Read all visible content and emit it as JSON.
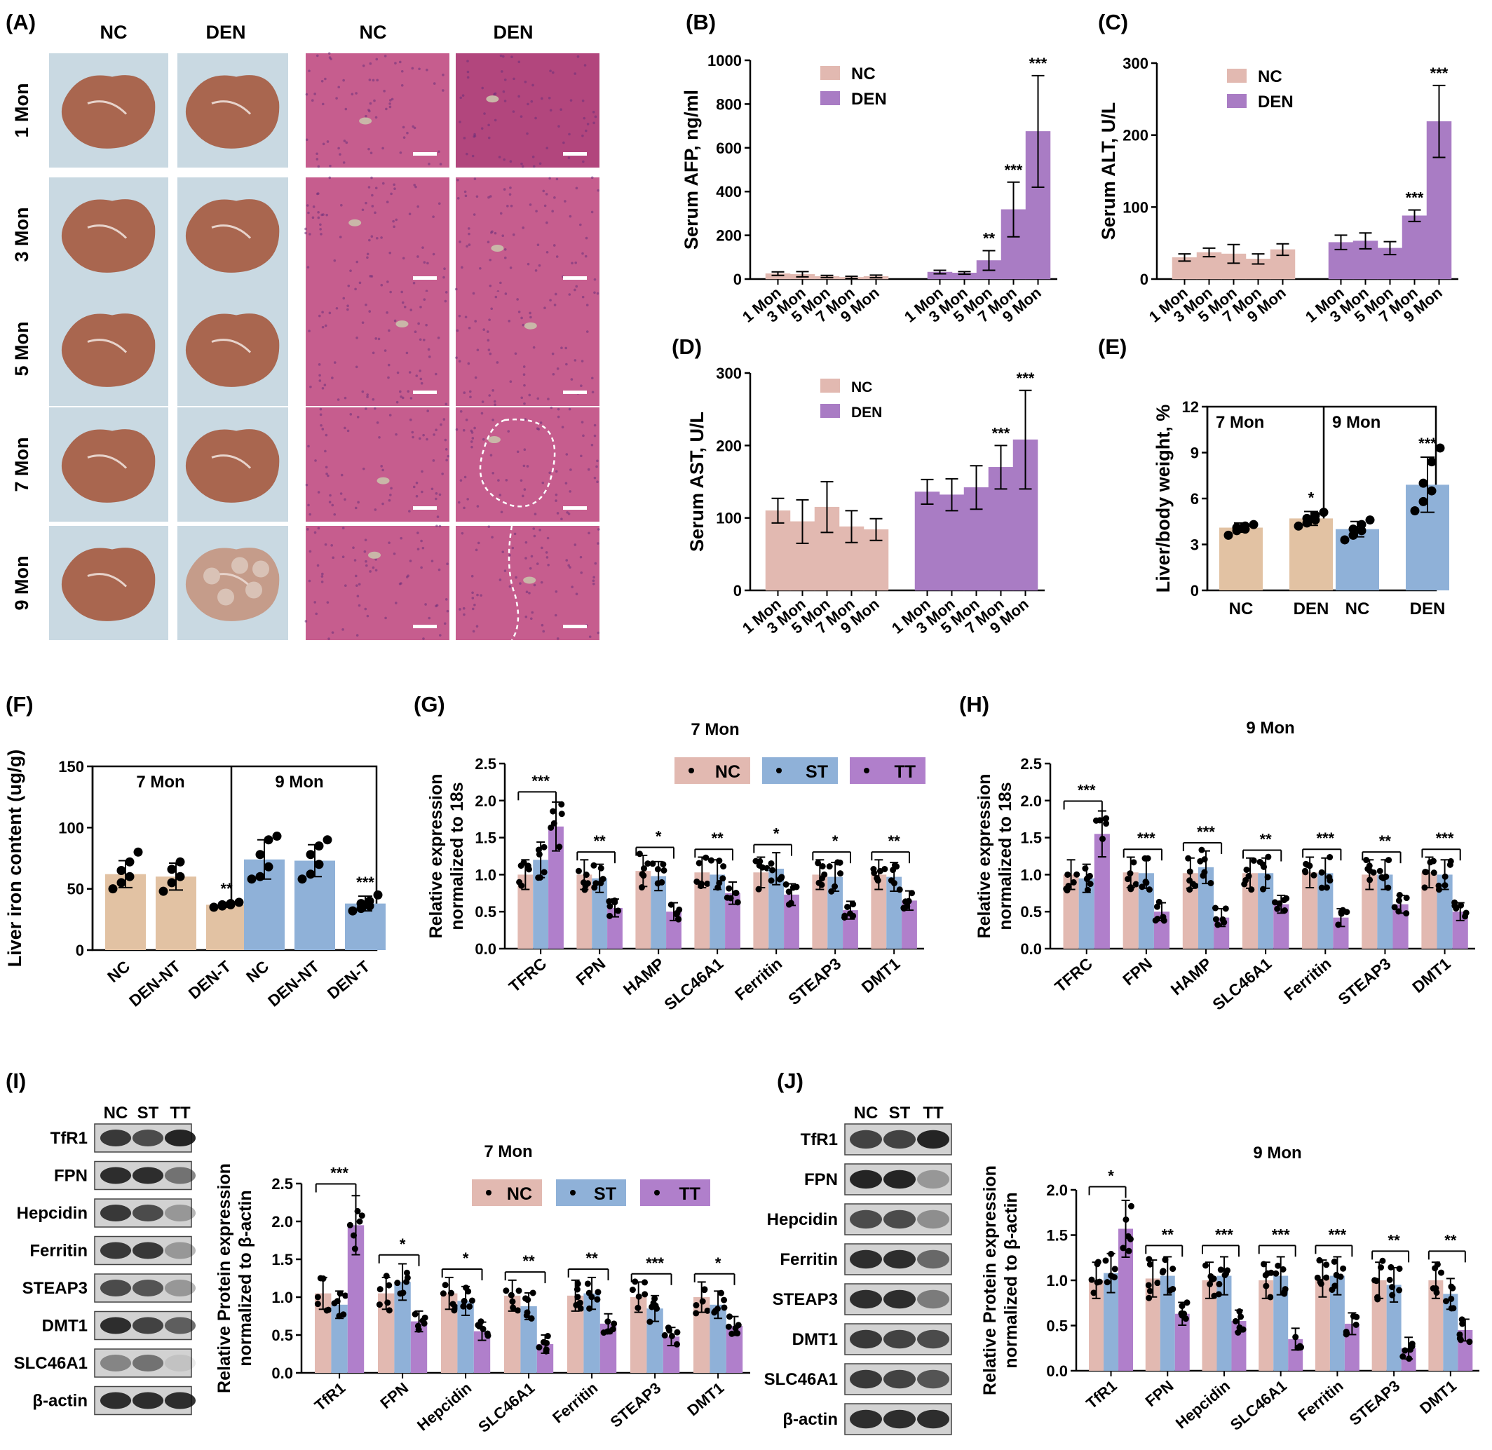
{
  "colors": {
    "nc": "#e2b9b1",
    "den": "#a97cc4",
    "nc_beige": "#e2c2a3",
    "blue": "#8fb1d8",
    "tt": "#b07fcb",
    "he_bg": "#c65d8e",
    "he_dark": "#b2467d",
    "liver": "#a9664f",
    "liver_bg": "#c9d9e2"
  },
  "panel_a": {
    "label": "(A)",
    "col_headers": [
      "NC",
      "DEN",
      "NC",
      "DEN"
    ],
    "row_labels": [
      "1 Mon",
      "3 Mon",
      "5 Mon",
      "7 Mon",
      "9 Mon"
    ]
  },
  "panel_i_blot": {
    "label": "(I)",
    "lanes": [
      "NC",
      "ST",
      "TT"
    ],
    "bands": [
      "TfR1",
      "FPN",
      "Hepcidin",
      "Ferritin",
      "STEAP3",
      "DMT1",
      "SLC46A1",
      "β-actin"
    ]
  },
  "panel_j_blot": {
    "label": "(J)",
    "lanes": [
      "NC",
      "ST",
      "TT"
    ],
    "bands": [
      "TfR1",
      "FPN",
      "Hepcidin",
      "Ferritin",
      "STEAP3",
      "DMT1",
      "SLC46A1",
      "β-actin"
    ]
  },
  "chart_data": [
    {
      "panel": "(B)",
      "type": "bar",
      "ylabel": "Serum AFP, ng/ml",
      "ylim": [
        0,
        1000
      ],
      "yticks": [
        0,
        200,
        400,
        600,
        800,
        1000
      ],
      "categories": [
        "1 Mon",
        "3 Mon",
        "5 Mon",
        "7 Mon",
        "9 Mon"
      ],
      "legend": "top-left",
      "series": [
        {
          "name": "NC",
          "values": [
            25,
            22,
            12,
            8,
            12
          ],
          "errors": [
            8,
            12,
            5,
            5,
            6
          ],
          "sig": [
            "",
            "",
            "",
            "",
            ""
          ]
        },
        {
          "name": "DEN",
          "values": [
            32,
            28,
            85,
            318,
            675
          ],
          "errors": [
            8,
            6,
            45,
            125,
            255
          ],
          "sig": [
            "",
            "",
            "**",
            "***",
            "***"
          ]
        }
      ]
    },
    {
      "panel": "(C)",
      "type": "bar",
      "ylabel": "Serum ALT, U/L",
      "ylim": [
        0,
        300
      ],
      "yticks": [
        0,
        100,
        200,
        300
      ],
      "categories": [
        "1 Mon",
        "3 Mon",
        "5 Mon",
        "7 Mon",
        "9 Mon"
      ],
      "legend": "top-left",
      "series": [
        {
          "name": "NC",
          "values": [
            30,
            37,
            35,
            28,
            41
          ],
          "errors": [
            5,
            6,
            13,
            7,
            8
          ],
          "sig": [
            "",
            "",
            "",
            "",
            ""
          ]
        },
        {
          "name": "DEN",
          "values": [
            51,
            53,
            43,
            88,
            219
          ],
          "errors": [
            10,
            11,
            9,
            8,
            50
          ],
          "sig": [
            "",
            "",
            "",
            "***",
            "***"
          ]
        }
      ]
    },
    {
      "panel": "(D)",
      "type": "bar",
      "ylabel": "Serum AST, U/L",
      "ylim": [
        0,
        300
      ],
      "yticks": [
        0,
        100,
        200,
        300
      ],
      "categories": [
        "1 Mon",
        "3 Mon",
        "5 Mon",
        "7 Mon",
        "9 Mon"
      ],
      "legend": "top-left",
      "series": [
        {
          "name": "NC",
          "values": [
            110,
            95,
            115,
            88,
            84
          ],
          "errors": [
            17,
            30,
            35,
            22,
            15
          ],
          "sig": [
            "",
            "",
            "",
            "",
            ""
          ]
        },
        {
          "name": "DEN",
          "values": [
            136,
            132,
            142,
            170,
            208
          ],
          "errors": [
            17,
            22,
            30,
            30,
            68
          ],
          "sig": [
            "",
            "",
            "",
            "***",
            "***"
          ]
        }
      ]
    },
    {
      "panel": "(E)",
      "type": "bar",
      "ylabel": "Liver/body weight, %",
      "ylim": [
        0,
        12
      ],
      "yticks": [
        0,
        3,
        6,
        9,
        12
      ],
      "groups": [
        {
          "title": "7 Mon",
          "bars": [
            {
              "label": "NC",
              "value": 4.1,
              "error": 0.3,
              "points": [
                3.6,
                3.9,
                4.0,
                4.1,
                4.2,
                4.3
              ],
              "sig": "",
              "color": "nc_beige"
            },
            {
              "label": "DEN",
              "value": 4.7,
              "error": 0.45,
              "points": [
                4.2,
                4.4,
                4.6,
                4.7,
                4.9,
                5.1
              ],
              "sig": "*",
              "color": "nc_beige"
            }
          ]
        },
        {
          "title": "9 Mon",
          "bars": [
            {
              "label": "NC",
              "value": 4.0,
              "error": 0.5,
              "points": [
                3.3,
                3.6,
                3.9,
                4.0,
                4.3,
                4.6
              ],
              "sig": "",
              "color": "blue"
            },
            {
              "label": "DEN",
              "value": 6.9,
              "error": 1.8,
              "points": [
                5.2,
                5.8,
                6.5,
                7.0,
                8.4,
                9.3
              ],
              "sig": "***",
              "color": "blue"
            }
          ]
        }
      ]
    },
    {
      "panel": "(F)",
      "type": "bar",
      "ylabel": "Liver iron content (ug/g)",
      "ylim": [
        0,
        150
      ],
      "yticks": [
        0,
        50,
        100,
        150
      ],
      "groups": [
        {
          "title": "7 Mon",
          "bars": [
            {
              "label": "NC",
              "value": 62,
              "error": 11,
              "points": [
                50,
                55,
                60,
                65,
                72,
                80
              ],
              "sig": "",
              "color": "nc_beige"
            },
            {
              "label": "DEN-NT",
              "value": 60,
              "error": 11,
              "points": [
                48,
                55,
                60,
                66,
                72
              ],
              "sig": "",
              "color": "nc_beige"
            },
            {
              "label": "DEN-T",
              "value": 37,
              "error": 2,
              "points": [
                35,
                36,
                37,
                37,
                38,
                39
              ],
              "sig": "**",
              "color": "nc_beige"
            }
          ]
        },
        {
          "title": "9 Mon",
          "bars": [
            {
              "label": "NC",
              "value": 74,
              "error": 16,
              "points": [
                58,
                60,
                68,
                78,
                90,
                93
              ],
              "sig": "",
              "color": "blue"
            },
            {
              "label": "DEN-NT",
              "value": 73,
              "error": 13,
              "points": [
                58,
                62,
                70,
                78,
                85,
                90
              ],
              "sig": "",
              "color": "blue"
            },
            {
              "label": "DEN-T",
              "value": 38,
              "error": 6,
              "points": [
                32,
                34,
                36,
                38,
                40,
                45
              ],
              "sig": "***",
              "color": "blue"
            }
          ]
        }
      ]
    },
    {
      "panel": "(G)",
      "type": "bar",
      "title": "7 Mon",
      "ylabel": "Relative expression normalized to 18s",
      "ylim": [
        0,
        2.5
      ],
      "yticks": [
        0.0,
        0.5,
        1.0,
        1.5,
        2.0,
        2.5
      ],
      "categories": [
        "TFRC",
        "FPN",
        "HAMP",
        "SLC46A1",
        "Ferritin",
        "STEAP3",
        "DMT1"
      ],
      "series": [
        {
          "name": "NC",
          "values": [
            1.0,
            1.0,
            1.05,
            1.03,
            1.03,
            1.0,
            1.0
          ]
        },
        {
          "name": "ST",
          "values": [
            1.2,
            0.95,
            0.98,
            1.0,
            1.08,
            0.97,
            0.97
          ]
        },
        {
          "name": "TT",
          "values": [
            1.65,
            0.55,
            0.5,
            0.75,
            0.73,
            0.52,
            0.65
          ]
        }
      ],
      "sig": [
        "***",
        "**",
        "*",
        "**",
        "*",
        "*",
        "**"
      ]
    },
    {
      "panel": "(H)",
      "type": "bar",
      "title": "9 Mon",
      "ylabel": "Relative expression normalized to 18s",
      "ylim": [
        0,
        2.5
      ],
      "yticks": [
        0.0,
        0.5,
        1.0,
        1.5,
        2.0,
        2.5
      ],
      "categories": [
        "TFRC",
        "FPN",
        "HAMP",
        "SLC46A1",
        "Ferritin",
        "STEAP3",
        "DMT1"
      ],
      "series": [
        {
          "name": "NC",
          "values": [
            1.0,
            1.03,
            1.02,
            1.02,
            1.03,
            1.0,
            1.03
          ]
        },
        {
          "name": "ST",
          "values": [
            0.95,
            1.02,
            1.1,
            1.02,
            1.02,
            1.0,
            1.0
          ]
        },
        {
          "name": "TT",
          "values": [
            1.55,
            0.5,
            0.42,
            0.6,
            0.42,
            0.6,
            0.5
          ]
        }
      ],
      "sig": [
        "***",
        "***",
        "***",
        "**",
        "***",
        "**",
        "***"
      ]
    },
    {
      "panel": "(I)",
      "type": "bar",
      "title": "7 Mon",
      "ylabel": "Relative Protein expression normalized to β-actin",
      "ylim": [
        0,
        2.5
      ],
      "yticks": [
        0.0,
        0.5,
        1.0,
        1.5,
        2.0,
        2.5
      ],
      "categories": [
        "TfR1",
        "FPN",
        "Hepcidin",
        "SLC46A1",
        "Ferritin",
        "STEAP3",
        "DMT1"
      ],
      "series": [
        {
          "name": "NC",
          "values": [
            1.05,
            1.05,
            1.05,
            1.02,
            1.02,
            1.0,
            1.0
          ]
        },
        {
          "name": "ST",
          "values": [
            0.9,
            1.2,
            0.95,
            0.88,
            1.05,
            0.85,
            0.9
          ]
        },
        {
          "name": "TT",
          "values": [
            1.95,
            0.68,
            0.55,
            0.38,
            0.65,
            0.48,
            0.62
          ]
        }
      ],
      "sig": [
        "***",
        "*",
        "*",
        "**",
        "**",
        "***",
        "*"
      ]
    },
    {
      "panel": "(J)",
      "type": "bar",
      "title": "9 Mon",
      "ylabel": "Relative Protein expression normalized to β-actin",
      "ylim": [
        0,
        2.0
      ],
      "yticks": [
        0.0,
        0.5,
        1.0,
        1.5,
        2.0
      ],
      "categories": [
        "TfR1",
        "FPN",
        "Hepcidin",
        "SLC46A1",
        "Ferritin",
        "STEAP3",
        "DMT1"
      ],
      "series": [
        {
          "name": "NC",
          "values": [
            1.0,
            1.02,
            1.0,
            1.0,
            1.02,
            1.0,
            1.0
          ]
        },
        {
          "name": "ST",
          "values": [
            1.08,
            1.05,
            1.05,
            1.05,
            1.05,
            0.95,
            0.85
          ]
        },
        {
          "name": "TT",
          "values": [
            1.57,
            0.63,
            0.55,
            0.35,
            0.52,
            0.25,
            0.45
          ]
        }
      ],
      "sig": [
        "*",
        "**",
        "***",
        "***",
        "***",
        "**",
        "**"
      ]
    }
  ]
}
